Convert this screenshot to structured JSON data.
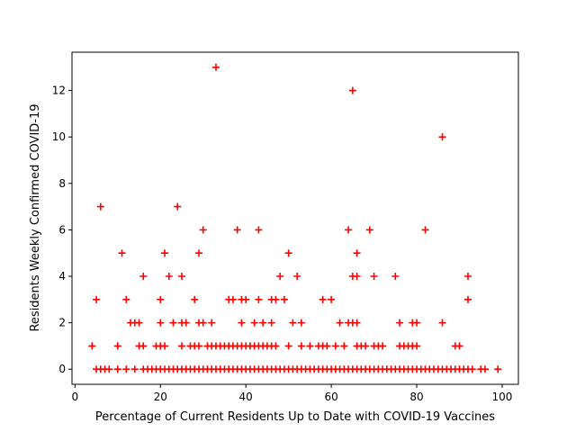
{
  "chart_data": {
    "type": "scatter",
    "xlabel": "Percentage of Current Residents Up to Date with COVID-19 Vaccines",
    "ylabel": "Residents Weekly Confirmed COVID-19",
    "xlim": [
      -0.7,
      103.8
    ],
    "ylim": [
      -0.65,
      13.65
    ],
    "xticks": [
      0,
      20,
      40,
      60,
      80,
      100
    ],
    "yticks": [
      0,
      2,
      4,
      6,
      8,
      10,
      12
    ],
    "grid": false,
    "marker": "+",
    "marker_color": "#ff0000",
    "points": [
      [
        4,
        1
      ],
      [
        5,
        3
      ],
      [
        6,
        7
      ],
      [
        11,
        5
      ],
      [
        10,
        1
      ],
      [
        12,
        3
      ],
      [
        13,
        2
      ],
      [
        14,
        2
      ],
      [
        15,
        2
      ],
      [
        15,
        1
      ],
      [
        16,
        1
      ],
      [
        16,
        4
      ],
      [
        19,
        1
      ],
      [
        20,
        3
      ],
      [
        20,
        2
      ],
      [
        20,
        1
      ],
      [
        21,
        1
      ],
      [
        21,
        5
      ],
      [
        22,
        4
      ],
      [
        23,
        2
      ],
      [
        24,
        7
      ],
      [
        25,
        4
      ],
      [
        25,
        2
      ],
      [
        26,
        2
      ],
      [
        25,
        1
      ],
      [
        27,
        1
      ],
      [
        28,
        3
      ],
      [
        28,
        1
      ],
      [
        29,
        5
      ],
      [
        29,
        2
      ],
      [
        29,
        1
      ],
      [
        30,
        6
      ],
      [
        30,
        2
      ],
      [
        31,
        1
      ],
      [
        32,
        2
      ],
      [
        32,
        1
      ],
      [
        33,
        13
      ],
      [
        33,
        1
      ],
      [
        34,
        1
      ],
      [
        35,
        1
      ],
      [
        36,
        3
      ],
      [
        36,
        1
      ],
      [
        37,
        3
      ],
      [
        37,
        1
      ],
      [
        38,
        6
      ],
      [
        38,
        1
      ],
      [
        39,
        3
      ],
      [
        39,
        2
      ],
      [
        39,
        1
      ],
      [
        40,
        3
      ],
      [
        40,
        1
      ],
      [
        41,
        1
      ],
      [
        42,
        2
      ],
      [
        42,
        1
      ],
      [
        43,
        6
      ],
      [
        43,
        3
      ],
      [
        43,
        1
      ],
      [
        44,
        2
      ],
      [
        44,
        1
      ],
      [
        45,
        1
      ],
      [
        46,
        3
      ],
      [
        46,
        2
      ],
      [
        46,
        1
      ],
      [
        47,
        3
      ],
      [
        47,
        1
      ],
      [
        48,
        4
      ],
      [
        49,
        3
      ],
      [
        50,
        5
      ],
      [
        50,
        1
      ],
      [
        51,
        2
      ],
      [
        52,
        4
      ],
      [
        53,
        2
      ],
      [
        53,
        1
      ],
      [
        55,
        1
      ],
      [
        57,
        1
      ],
      [
        58,
        3
      ],
      [
        58,
        1
      ],
      [
        59,
        1
      ],
      [
        60,
        3
      ],
      [
        61,
        1
      ],
      [
        62,
        2
      ],
      [
        63,
        1
      ],
      [
        64,
        6
      ],
      [
        64,
        2
      ],
      [
        65,
        12
      ],
      [
        65,
        4
      ],
      [
        65,
        2
      ],
      [
        66,
        5
      ],
      [
        66,
        4
      ],
      [
        66,
        2
      ],
      [
        66,
        1
      ],
      [
        67,
        1
      ],
      [
        68,
        1
      ],
      [
        69,
        6
      ],
      [
        70,
        4
      ],
      [
        70,
        1
      ],
      [
        71,
        1
      ],
      [
        72,
        1
      ],
      [
        75,
        4
      ],
      [
        76,
        2
      ],
      [
        76,
        1
      ],
      [
        77,
        1
      ],
      [
        78,
        1
      ],
      [
        79,
        2
      ],
      [
        79,
        1
      ],
      [
        80,
        2
      ],
      [
        80,
        1
      ],
      [
        82,
        6
      ],
      [
        86,
        10
      ],
      [
        86,
        2
      ],
      [
        89,
        1
      ],
      [
        90,
        1
      ],
      [
        92,
        4
      ],
      [
        92,
        3
      ],
      [
        5,
        0
      ],
      [
        6,
        0
      ],
      [
        7,
        0
      ],
      [
        8,
        0
      ],
      [
        10,
        0
      ],
      [
        12,
        0
      ],
      [
        14,
        0
      ],
      [
        16,
        0
      ],
      [
        17,
        0
      ],
      [
        18,
        0
      ],
      [
        19,
        0
      ],
      [
        20,
        0
      ],
      [
        21,
        0
      ],
      [
        22,
        0
      ],
      [
        23,
        0
      ],
      [
        24,
        0
      ],
      [
        25,
        0
      ],
      [
        26,
        0
      ],
      [
        27,
        0
      ],
      [
        28,
        0
      ],
      [
        29,
        0
      ],
      [
        30,
        0
      ],
      [
        31,
        0
      ],
      [
        32,
        0
      ],
      [
        33,
        0
      ],
      [
        34,
        0
      ],
      [
        35,
        0
      ],
      [
        36,
        0
      ],
      [
        37,
        0
      ],
      [
        38,
        0
      ],
      [
        39,
        0
      ],
      [
        40,
        0
      ],
      [
        41,
        0
      ],
      [
        42,
        0
      ],
      [
        43,
        0
      ],
      [
        44,
        0
      ],
      [
        45,
        0
      ],
      [
        46,
        0
      ],
      [
        47,
        0
      ],
      [
        48,
        0
      ],
      [
        49,
        0
      ],
      [
        50,
        0
      ],
      [
        51,
        0
      ],
      [
        52,
        0
      ],
      [
        53,
        0
      ],
      [
        54,
        0
      ],
      [
        55,
        0
      ],
      [
        56,
        0
      ],
      [
        57,
        0
      ],
      [
        58,
        0
      ],
      [
        59,
        0
      ],
      [
        60,
        0
      ],
      [
        61,
        0
      ],
      [
        62,
        0
      ],
      [
        63,
        0
      ],
      [
        64,
        0
      ],
      [
        65,
        0
      ],
      [
        66,
        0
      ],
      [
        67,
        0
      ],
      [
        68,
        0
      ],
      [
        69,
        0
      ],
      [
        70,
        0
      ],
      [
        71,
        0
      ],
      [
        72,
        0
      ],
      [
        73,
        0
      ],
      [
        74,
        0
      ],
      [
        75,
        0
      ],
      [
        76,
        0
      ],
      [
        77,
        0
      ],
      [
        78,
        0
      ],
      [
        79,
        0
      ],
      [
        80,
        0
      ],
      [
        81,
        0
      ],
      [
        82,
        0
      ],
      [
        83,
        0
      ],
      [
        84,
        0
      ],
      [
        85,
        0
      ],
      [
        86,
        0
      ],
      [
        87,
        0
      ],
      [
        88,
        0
      ],
      [
        89,
        0
      ],
      [
        90,
        0
      ],
      [
        91,
        0
      ],
      [
        92,
        0
      ],
      [
        93,
        0
      ],
      [
        95,
        0
      ],
      [
        96,
        0
      ],
      [
        99,
        0
      ]
    ]
  }
}
